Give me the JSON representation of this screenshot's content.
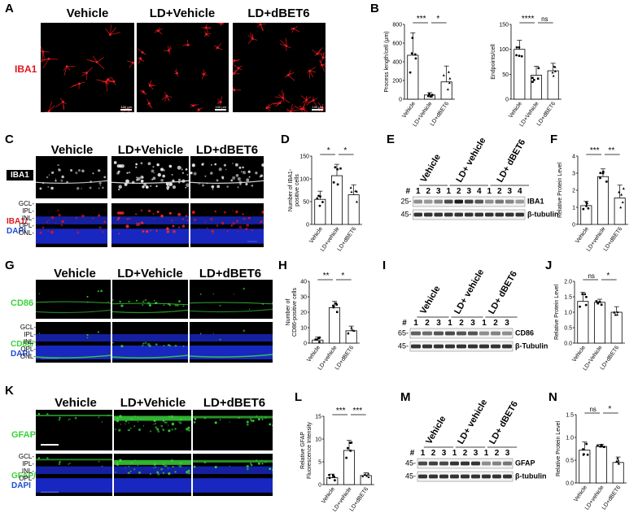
{
  "panels": {
    "A": "A",
    "B": "B",
    "C": "C",
    "D": "D",
    "E": "E",
    "F": "F",
    "G": "G",
    "H": "H",
    "I": "I",
    "J": "J",
    "K": "K",
    "L": "L",
    "M": "M",
    "N": "N"
  },
  "groups": {
    "g1": "Vehicle",
    "g2": "LD+Vehicle",
    "g3": "LD+dBET6"
  },
  "blot_groups": {
    "g1": "Vehicle",
    "g2": "LD+ vehicle",
    "g3": "LD+ dBET6"
  },
  "markers": {
    "iba1": "IBA1",
    "iba1_dapi_a": "IBA1/",
    "dapi": "DAPI",
    "cd86": "CD86",
    "cd86_dapi_a": "CD86/",
    "gfap": "GFAP",
    "gfap_dapi_a": "GFAP/"
  },
  "layers": {
    "gcl": "GCL-",
    "ipl": "IPL-",
    "inl": "INL-",
    "opl": "OPL-",
    "onl": "ONL-"
  },
  "scale": {
    "a1": "100 μm",
    "a2": "100 μm",
    "a3": "100 μm"
  },
  "blot": {
    "E": {
      "lanes": [
        "#",
        "1",
        "2",
        "3",
        "1",
        "2",
        "3",
        "4",
        "1",
        "2",
        "3",
        "4"
      ],
      "mw1": "25-",
      "mw2": "45-",
      "band1": "IBA1",
      "band2": "β-tubulin"
    },
    "I": {
      "lanes": [
        "#",
        "1",
        "2",
        "3",
        "1",
        "2",
        "3",
        "1",
        "2",
        "3"
      ],
      "mw1": "65-",
      "mw2": "45-",
      "band1": "CD86",
      "band2": "β-Tubulin"
    },
    "M": {
      "lanes": [
        "#",
        "1",
        "2",
        "3",
        "1",
        "2",
        "3",
        "1",
        "2",
        "3"
      ],
      "mw1": "45-",
      "mw2": "45-",
      "band1": "GFAP",
      "band2": "β-tubulin"
    }
  },
  "chart_data": [
    {
      "id": "B1",
      "type": "bar",
      "ylabel": "Process length/cell (μm)",
      "ylim": [
        0,
        800
      ],
      "yticks": [
        0,
        200,
        400,
        600,
        800
      ],
      "categories": [
        "Vehicle",
        "LD+Vehicle",
        "LD+dBET6"
      ],
      "values": [
        470,
        45,
        185
      ],
      "errors": [
        240,
        25,
        170
      ],
      "sig": [
        {
          "label": "***",
          "from": 0,
          "to": 1
        },
        {
          "label": "*",
          "from": 1,
          "to": 2
        }
      ]
    },
    {
      "id": "B2",
      "type": "bar",
      "ylabel": "Endpoints/cell",
      "ylim": [
        0,
        150
      ],
      "yticks": [
        0,
        50,
        100,
        150
      ],
      "categories": [
        "Vehicle",
        "LD+Vehicle",
        "LD+dBET6"
      ],
      "values": [
        100,
        48,
        57
      ],
      "errors": [
        18,
        18,
        15
      ],
      "sig": [
        {
          "label": "****",
          "from": 0,
          "to": 1
        },
        {
          "label": "ns",
          "from": 1,
          "to": 2
        }
      ]
    },
    {
      "id": "D",
      "type": "bar",
      "ylabel": "Number of IBA1- positive cells",
      "ylim": [
        0,
        150
      ],
      "yticks": [
        0,
        50,
        100,
        150
      ],
      "categories": [
        "Vehicle",
        "LD+vehicle",
        "LD+dBET6"
      ],
      "values": [
        55,
        107,
        65
      ],
      "errors": [
        18,
        25,
        22
      ],
      "sig": [
        {
          "label": "*",
          "from": 0,
          "to": 1
        },
        {
          "label": "*",
          "from": 1,
          "to": 2
        }
      ]
    },
    {
      "id": "F",
      "type": "bar",
      "ylabel": "Relative Protein Level",
      "ylim": [
        0,
        4
      ],
      "yticks": [
        0,
        1,
        2,
        3,
        4
      ],
      "categories": [
        "Vehicle",
        "LD+vehicle",
        "LD+dBET6"
      ],
      "values": [
        1.1,
        2.8,
        1.55
      ],
      "errors": [
        0.25,
        0.45,
        0.75
      ],
      "sig": [
        {
          "label": "***",
          "from": 0,
          "to": 1
        },
        {
          "label": "**",
          "from": 1,
          "to": 2
        }
      ]
    },
    {
      "id": "H",
      "type": "bar",
      "ylabel": "Number of CD86-positive cells",
      "ylim": [
        0,
        40
      ],
      "yticks": [
        0,
        10,
        20,
        30,
        40
      ],
      "categories": [
        "Vehicle",
        "LD+vehicle",
        "LD+dBET6"
      ],
      "values": [
        2,
        23,
        8
      ],
      "errors": [
        2,
        4,
        3
      ],
      "sig": [
        {
          "label": "**",
          "from": 0,
          "to": 1
        },
        {
          "label": "*",
          "from": 1,
          "to": 2
        }
      ]
    },
    {
      "id": "J",
      "type": "bar",
      "ylabel": "Relative Protein Level",
      "ylim": [
        0,
        2.0
      ],
      "yticks": [
        0.0,
        0.5,
        1.0,
        1.5,
        2.0
      ],
      "categories": [
        "Vehicle",
        "LD+Vehicle",
        "LD+dBET6"
      ],
      "values": [
        1.35,
        1.32,
        1.0
      ],
      "errors": [
        0.3,
        0.1,
        0.18
      ],
      "sig": [
        {
          "label": "ns",
          "from": 0,
          "to": 1
        },
        {
          "label": "*",
          "from": 1,
          "to": 2
        }
      ]
    },
    {
      "id": "L",
      "type": "bar",
      "ylabel": "Relative GFAP Fluorescence Intensity",
      "ylim": [
        0,
        15
      ],
      "yticks": [
        0,
        5,
        10,
        15
      ],
      "categories": [
        "Vehicle",
        "LD+vehicle",
        "LD+dBET6"
      ],
      "values": [
        1.5,
        7.5,
        2
      ],
      "errors": [
        0.8,
        2.2,
        0.6
      ],
      "sig": [
        {
          "label": "***",
          "from": 0,
          "to": 1
        },
        {
          "label": "***",
          "from": 1,
          "to": 2
        }
      ]
    },
    {
      "id": "N",
      "type": "bar",
      "ylabel": "Relative Protein Level",
      "ylim": [
        0,
        1.5
      ],
      "yticks": [
        0.0,
        0.5,
        1.0,
        1.5
      ],
      "categories": [
        "Vehicle",
        "LD+vehicle",
        "LD+dBET6"
      ],
      "values": [
        0.72,
        0.8,
        0.45
      ],
      "errors": [
        0.18,
        0.05,
        0.12
      ],
      "sig": [
        {
          "label": "ns",
          "from": 0,
          "to": 1
        },
        {
          "label": "*",
          "from": 1,
          "to": 2
        }
      ]
    }
  ],
  "colors": {
    "red": "#e0161b",
    "green": "#3ad23a",
    "blue": "#1c2bd6",
    "dapi_label": "#1c4bd8"
  }
}
